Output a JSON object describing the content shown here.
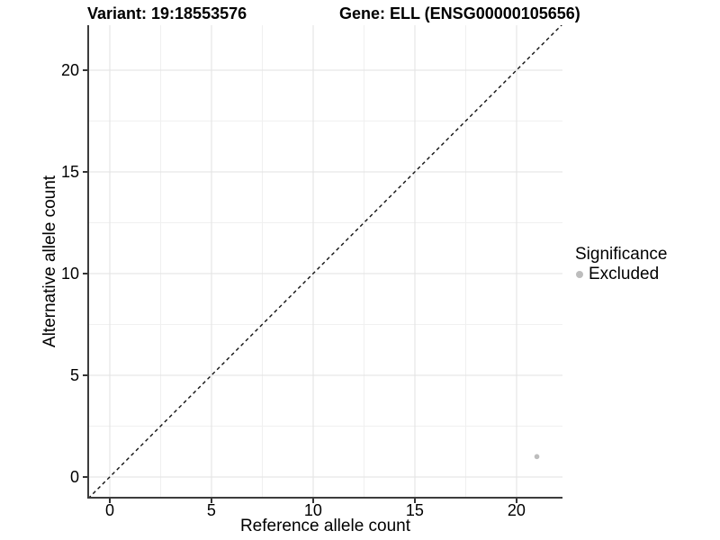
{
  "chart_data": {
    "type": "scatter",
    "titles": {
      "variant": "Variant: 19:18553576",
      "gene": "Gene: ELL (ENSG00000105656)"
    },
    "xlabel": "Reference allele count",
    "ylabel": "Alternative allele count",
    "x_ticks": [
      0,
      5,
      10,
      15,
      20
    ],
    "y_ticks": [
      0,
      5,
      10,
      15,
      20
    ],
    "x_minor_gridlines": [
      2.5,
      7.5,
      12.5,
      17.5
    ],
    "y_minor_gridlines": [
      2.5,
      7.5,
      12.5,
      17.5
    ],
    "xlim": [
      -1.06,
      22.26
    ],
    "ylim": [
      -1.02,
      22.21
    ],
    "grid": "major+minor",
    "reference_line": {
      "type": "identity",
      "slope": 1,
      "intercept": 0,
      "style": "dashed",
      "color": "#111111"
    },
    "series": [
      {
        "name": "Excluded",
        "color": "#bdbdbd",
        "points": [
          {
            "x": 21,
            "y": 1
          }
        ]
      }
    ],
    "legend": {
      "title": "Significance",
      "position": "right",
      "items": [
        {
          "label": "Excluded",
          "color": "#bdbdbd",
          "marker": "circle"
        }
      ]
    },
    "colors": {
      "background": "#ffffff",
      "axis_line": "#3c3c3c",
      "tick": "#343434",
      "grid_major": "#e2e2e2",
      "grid_minor": "#f0f0f0",
      "text": "#000000"
    }
  }
}
